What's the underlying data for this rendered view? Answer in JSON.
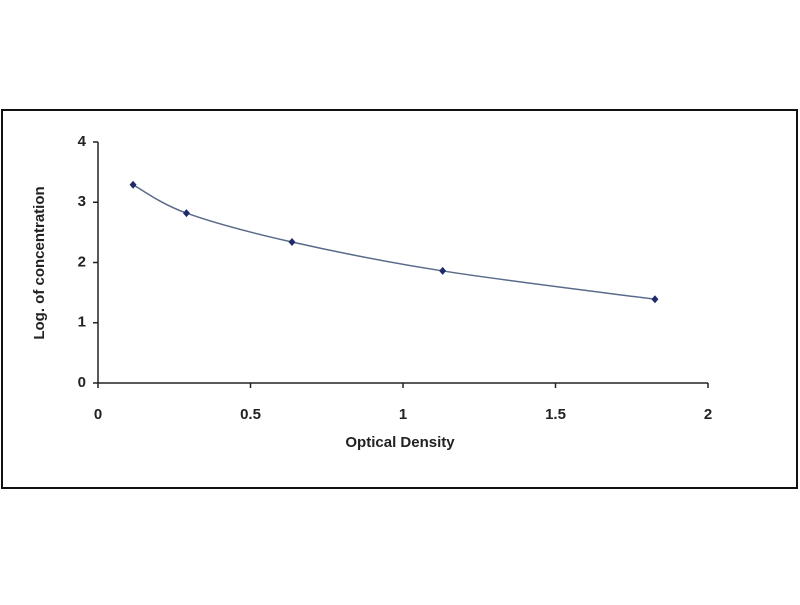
{
  "chart_data": {
    "type": "scatter",
    "x": [
      0.115,
      0.29,
      0.636,
      1.13,
      1.826
    ],
    "series": [
      {
        "color": "#1f2a6b",
        "values": [
          3.29,
          2.82,
          2.34,
          1.86,
          1.39
        ]
      }
    ],
    "smooth_curve": true,
    "curve_color": "#5a6a8a",
    "xlim": [
      0,
      2
    ],
    "ylim": [
      0,
      4
    ],
    "xticks": [
      0,
      0.5,
      1,
      1.5,
      2
    ],
    "yticks": [
      0,
      1,
      2,
      3,
      4
    ],
    "xlabel": "Optical Density",
    "ylabel": "Log. of concentration"
  }
}
